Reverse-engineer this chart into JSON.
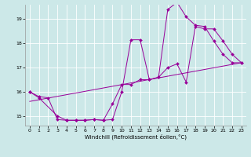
{
  "background_color": "#cce8e8",
  "line_color": "#990099",
  "xlabel": "Windchill (Refroidissement éolien,°C)",
  "xlim": [
    -0.5,
    23.5
  ],
  "ylim": [
    14.6,
    19.6
  ],
  "yticks": [
    15,
    16,
    17,
    18,
    19
  ],
  "xticks": [
    0,
    1,
    2,
    3,
    4,
    5,
    6,
    7,
    8,
    9,
    10,
    11,
    12,
    13,
    14,
    15,
    16,
    17,
    18,
    19,
    20,
    21,
    22,
    23
  ],
  "line1_x": [
    0,
    1,
    2,
    3,
    4,
    5,
    6,
    7,
    8,
    9,
    10,
    11,
    12,
    13,
    14,
    15,
    16,
    17,
    18,
    19,
    20,
    21,
    22,
    23
  ],
  "line1_y": [
    16.0,
    15.8,
    15.75,
    14.85,
    14.82,
    14.82,
    14.82,
    14.85,
    14.82,
    14.85,
    16.0,
    18.15,
    18.15,
    16.5,
    16.6,
    19.4,
    19.7,
    19.1,
    18.75,
    18.7,
    18.1,
    17.55,
    17.2,
    17.2
  ],
  "line2_x": [
    0,
    1,
    3,
    4,
    5,
    6,
    7,
    8,
    9,
    10,
    11,
    12,
    13,
    14,
    15,
    16,
    17,
    18,
    19,
    20,
    21,
    22,
    23
  ],
  "line2_y": [
    16.0,
    15.75,
    15.0,
    14.82,
    14.82,
    14.82,
    14.85,
    14.82,
    15.5,
    16.3,
    16.3,
    16.5,
    16.5,
    16.6,
    17.0,
    17.15,
    16.4,
    18.7,
    18.6,
    18.6,
    18.1,
    17.55,
    17.2
  ],
  "line3_x": [
    0,
    23
  ],
  "line3_y": [
    15.6,
    17.2
  ]
}
